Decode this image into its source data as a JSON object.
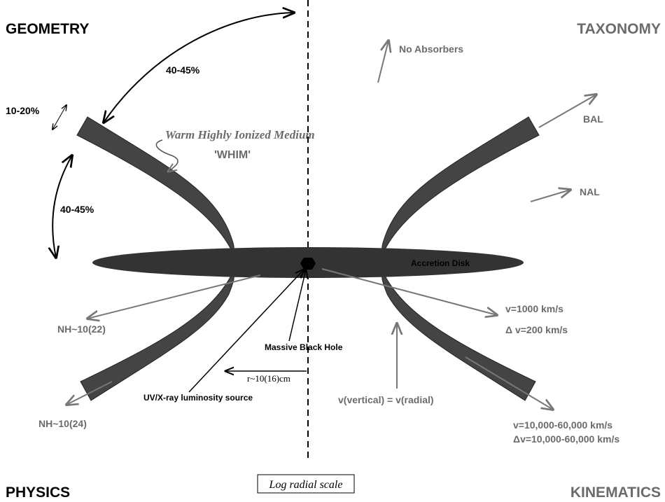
{
  "corners": {
    "geometry": "GEOMETRY",
    "taxonomy": "TAXONOMY",
    "physics": "PHYSICS",
    "kinematics": "KINEMATICS"
  },
  "geometry": {
    "top_angle": "40-45%",
    "side_angle": "10-20%",
    "lower_angle": "40-45%",
    "whim_name": "Warm Highly Ionized Medium",
    "whim_abbr": "'WHIM'"
  },
  "taxonomy": {
    "none": "No Absorbers",
    "bal": "BAL",
    "nal": "NAL"
  },
  "center": {
    "disk": "Accretion Disk",
    "black_hole": "Massive Black Hole",
    "source": "UV/X-ray luminosity source",
    "radius": "r~10(16)cm",
    "scale": "Log radial scale"
  },
  "physics": {
    "nh_low": "NH~10(22)",
    "nh_high": "NH~10(24)"
  },
  "kinematics": {
    "v_narrow": "v=1000 km/s",
    "dv_narrow": "Δ v=200 km/s",
    "v_equal": "v(vertical) = v(radial)",
    "v_broad": "v=10,000-60,000 km/s",
    "dv_broad": "Δv=10,000-60,000 km/s"
  }
}
